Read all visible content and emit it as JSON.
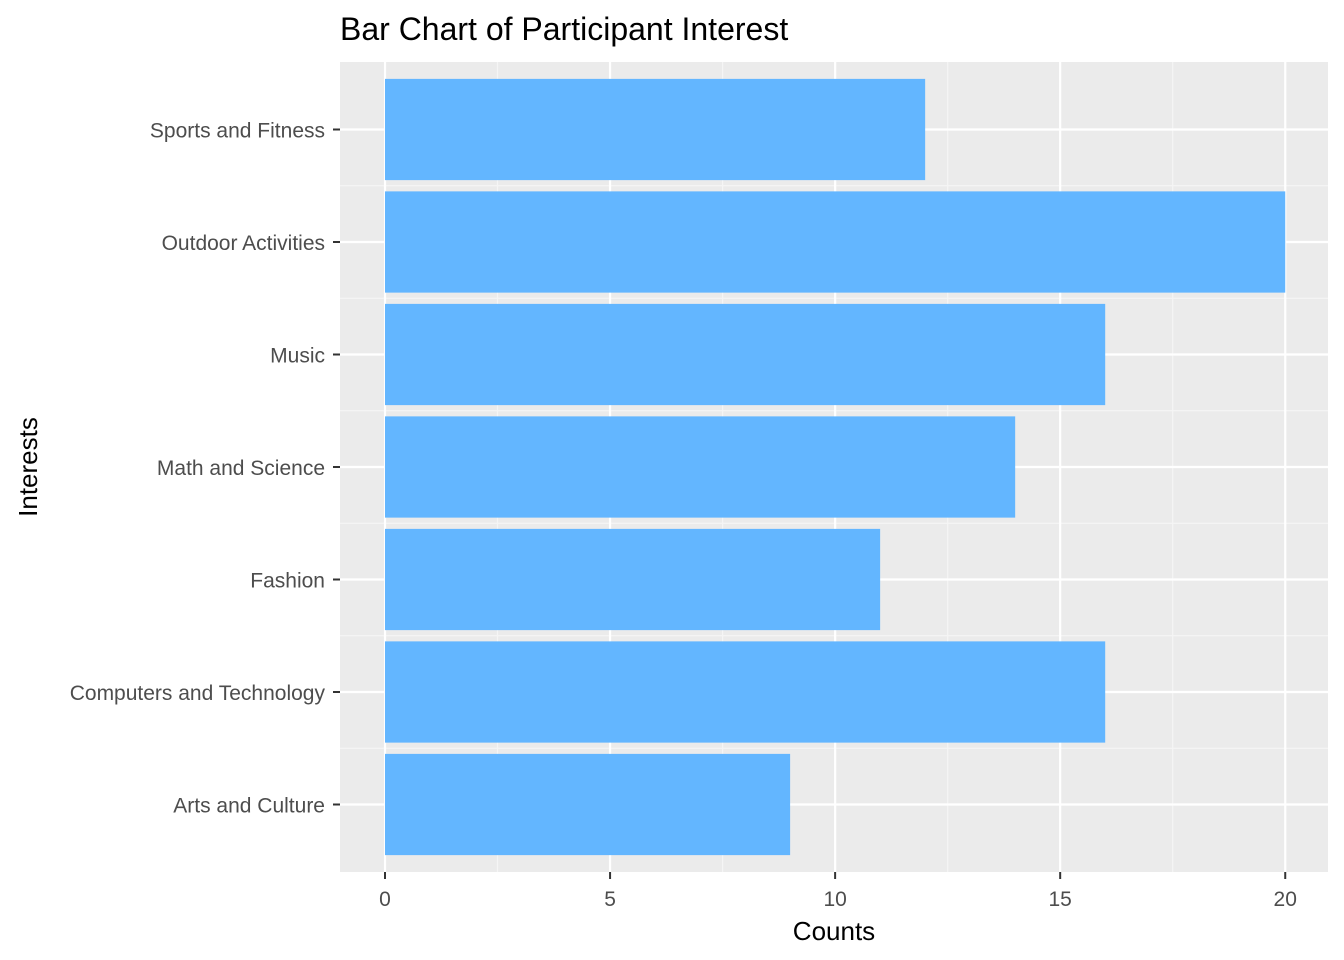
{
  "chart_data": {
    "type": "bar",
    "orientation": "horizontal",
    "title": "Bar Chart of Participant Interest",
    "xlabel": "Counts",
    "ylabel": "Interests",
    "categories": [
      "Arts and Culture",
      "Computers and Technology",
      "Fashion",
      "Math and Science",
      "Music",
      "Outdoor Activities",
      "Sports and Fitness"
    ],
    "values": [
      9,
      16,
      11,
      14,
      16,
      20,
      12
    ],
    "xlim": [
      -1,
      20.95
    ],
    "x_ticks": [
      0,
      5,
      10,
      15,
      20
    ],
    "x_tick_labels": [
      "0",
      "5",
      "10",
      "15",
      "20"
    ],
    "x_minor_ticks": [
      2.5,
      7.5,
      12.5,
      17.5
    ],
    "grid": true,
    "legend": "none",
    "colors": {
      "bar": "#63b6ff",
      "panel_background": "#ebebeb",
      "grid_major": "#ffffff",
      "grid_minor": "#f5f5f5",
      "tick_text": "#4d4d4d",
      "tick_mark": "#333333"
    }
  }
}
